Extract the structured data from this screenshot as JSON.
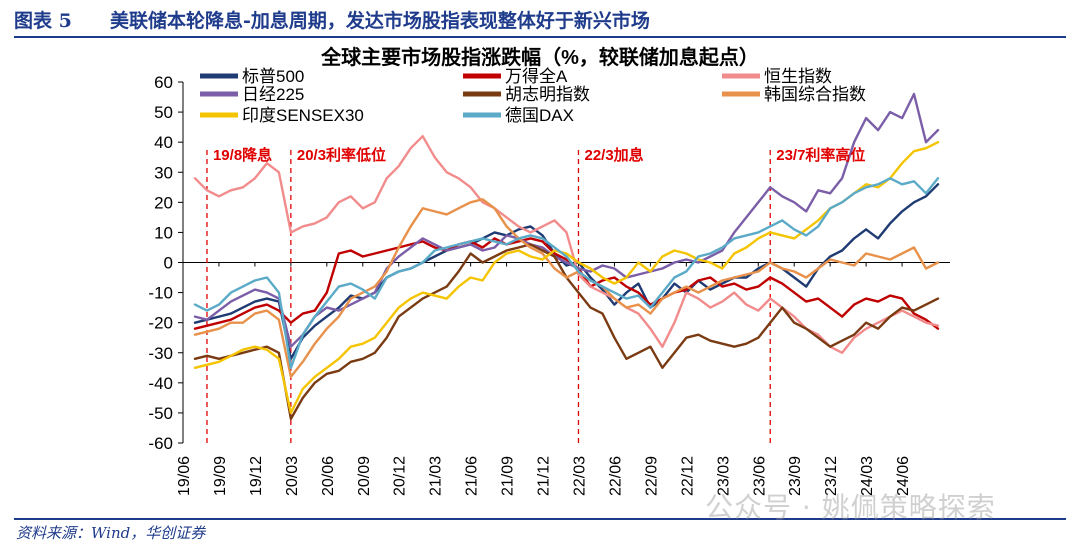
{
  "header": {
    "figure_label": "图表 5",
    "figure_title": "美联储本轮降息-加息周期，发达市场股指表现整体好于新兴市场"
  },
  "footer": {
    "source": "资料来源：Wind，华创证券",
    "watermark": "公众号 · 姚佩策略探索"
  },
  "chart_data": {
    "type": "line",
    "title": "全球主要市场股指涨跌幅（%，较联储加息起点）",
    "xlabel": "",
    "ylabel": "",
    "ylim": [
      -60,
      60
    ],
    "yticks": [
      -60,
      -50,
      -40,
      -30,
      -20,
      -10,
      0,
      10,
      20,
      30,
      40,
      50,
      60
    ],
    "x_tick_labels": [
      "19/06",
      "19/09",
      "19/12",
      "20/03",
      "20/06",
      "20/09",
      "20/12",
      "21/03",
      "21/06",
      "21/09",
      "21/12",
      "22/03",
      "22/06",
      "22/09",
      "22/12",
      "23/03",
      "23/06",
      "23/09",
      "23/12",
      "24/03",
      "24/06"
    ],
    "grid": false,
    "legend": "top",
    "annotations": [
      {
        "label": "19/8降息",
        "x": "19/08"
      },
      {
        "label": "20/3利率低位",
        "x": "20/03"
      },
      {
        "label": "22/3加息",
        "x": "22/03"
      },
      {
        "label": "23/7利率高位",
        "x": "23/07"
      }
    ],
    "x": [
      "19/07",
      "19/08",
      "19/09",
      "19/10",
      "19/11",
      "19/12",
      "20/01",
      "20/02",
      "20/03",
      "20/04",
      "20/05",
      "20/06",
      "20/07",
      "20/08",
      "20/09",
      "20/10",
      "20/11",
      "20/12",
      "21/01",
      "21/02",
      "21/03",
      "21/04",
      "21/05",
      "21/06",
      "21/07",
      "21/08",
      "21/09",
      "21/10",
      "21/11",
      "21/12",
      "22/01",
      "22/02",
      "22/03",
      "22/04",
      "22/05",
      "22/06",
      "22/07",
      "22/08",
      "22/09",
      "22/10",
      "22/11",
      "22/12",
      "23/01",
      "23/02",
      "23/03",
      "23/04",
      "23/05",
      "23/06",
      "23/07",
      "23/08",
      "23/09",
      "23/10",
      "23/11",
      "23/12",
      "24/01",
      "24/02",
      "24/03",
      "24/04",
      "24/05",
      "24/06",
      "24/07",
      "24/08",
      "24/09"
    ],
    "series": [
      {
        "name": "标普500",
        "color": "#1f3b73",
        "values": [
          -20,
          -19,
          -18,
          -17,
          -15,
          -13,
          -12,
          -13,
          -32,
          -25,
          -21,
          -18,
          -15,
          -11,
          -12,
          -10,
          -5,
          -3,
          -2,
          0,
          2,
          4,
          5,
          6,
          8,
          10,
          9,
          11,
          12,
          9,
          3,
          -1,
          0,
          -5,
          -9,
          -14,
          -10,
          -7,
          -15,
          -12,
          -7,
          -10,
          -6,
          -9,
          -7,
          -5,
          -5,
          -2,
          0,
          -2,
          -5,
          -8,
          -2,
          2,
          4,
          8,
          11,
          8,
          13,
          17,
          20,
          22,
          26
        ]
      },
      {
        "name": "万得全A",
        "color": "#c00000",
        "values": [
          -22,
          -21,
          -20,
          -19,
          -17,
          -15,
          -14,
          -16,
          -20,
          -17,
          -16,
          -10,
          3,
          4,
          2,
          3,
          4,
          5,
          6,
          7,
          5,
          4,
          6,
          7,
          5,
          8,
          6,
          7,
          8,
          7,
          3,
          1,
          -2,
          -8,
          -6,
          -5,
          -8,
          -10,
          -14,
          -12,
          -10,
          -9,
          -6,
          -5,
          -8,
          -7,
          -9,
          -8,
          -5,
          -7,
          -10,
          -13,
          -12,
          -15,
          -18,
          -14,
          -12,
          -13,
          -11,
          -12,
          -17,
          -19,
          -22
        ]
      },
      {
        "name": "恒生指数",
        "color": "#f28b8b",
        "values": [
          28,
          24,
          22,
          24,
          25,
          28,
          33,
          30,
          10,
          12,
          13,
          15,
          20,
          22,
          18,
          20,
          28,
          32,
          38,
          42,
          35,
          30,
          28,
          25,
          20,
          18,
          15,
          12,
          10,
          12,
          14,
          10,
          -4,
          -8,
          -10,
          -12,
          -15,
          -17,
          -22,
          -28,
          -20,
          -10,
          -12,
          -15,
          -13,
          -10,
          -14,
          -16,
          -12,
          -15,
          -18,
          -22,
          -24,
          -28,
          -30,
          -25,
          -22,
          -20,
          -18,
          -16,
          -18,
          -20,
          -21
        ]
      },
      {
        "name": "日经225",
        "color": "#7b5ea7",
        "values": [
          -18,
          -19,
          -16,
          -13,
          -11,
          -9,
          -10,
          -12,
          -28,
          -24,
          -18,
          -15,
          -16,
          -14,
          -12,
          -10,
          -2,
          2,
          5,
          8,
          6,
          4,
          5,
          6,
          4,
          5,
          9,
          8,
          6,
          5,
          2,
          0,
          -2,
          -3,
          -1,
          -2,
          -5,
          -4,
          -3,
          -2,
          0,
          1,
          0,
          2,
          4,
          10,
          15,
          20,
          25,
          22,
          20,
          17,
          24,
          23,
          28,
          40,
          48,
          44,
          50,
          48,
          56,
          40,
          44
        ]
      },
      {
        "name": "胡志明指数",
        "color": "#7a3b12",
        "values": [
          -32,
          -31,
          -32,
          -31,
          -30,
          -29,
          -28,
          -30,
          -52,
          -45,
          -40,
          -37,
          -36,
          -33,
          -32,
          -30,
          -25,
          -18,
          -15,
          -12,
          -10,
          -8,
          -3,
          3,
          0,
          2,
          4,
          5,
          6,
          4,
          2,
          -5,
          -10,
          -15,
          -17,
          -25,
          -32,
          -30,
          -28,
          -35,
          -30,
          -25,
          -24,
          -26,
          -27,
          -28,
          -27,
          -25,
          -20,
          -15,
          -20,
          -22,
          -25,
          -28,
          -26,
          -24,
          -20,
          -22,
          -18,
          -15,
          -16,
          -14,
          -12
        ]
      },
      {
        "name": "韩国综合指数",
        "color": "#e8914a",
        "values": [
          -24,
          -23,
          -22,
          -20,
          -20,
          -17,
          -16,
          -19,
          -38,
          -33,
          -27,
          -22,
          -18,
          -12,
          -10,
          -8,
          -3,
          5,
          12,
          18,
          17,
          16,
          18,
          20,
          21,
          18,
          12,
          8,
          5,
          3,
          -2,
          -5,
          -3,
          -6,
          -8,
          -12,
          -15,
          -14,
          -17,
          -12,
          -10,
          -8,
          -10,
          -8,
          -6,
          -5,
          -4,
          -3,
          0,
          -2,
          -3,
          -5,
          -2,
          1,
          0,
          -1,
          3,
          2,
          1,
          3,
          5,
          -2,
          0
        ]
      },
      {
        "name": "印度SENSEX30",
        "color": "#f5c400",
        "values": [
          -35,
          -34,
          -33,
          -31,
          -29,
          -28,
          -29,
          -32,
          -50,
          -42,
          -38,
          -35,
          -32,
          -28,
          -27,
          -25,
          -20,
          -15,
          -12,
          -10,
          -11,
          -12,
          -8,
          -5,
          -6,
          0,
          3,
          4,
          2,
          1,
          4,
          3,
          0,
          -2,
          -5,
          -7,
          -5,
          0,
          -3,
          2,
          4,
          3,
          1,
          0,
          -2,
          3,
          5,
          8,
          10,
          9,
          8,
          11,
          14,
          18,
          20,
          23,
          26,
          25,
          28,
          33,
          37,
          38,
          40
        ]
      },
      {
        "name": "德国DAX",
        "color": "#5aaac8",
        "values": [
          -14,
          -16,
          -14,
          -10,
          -8,
          -6,
          -5,
          -10,
          -35,
          -24,
          -18,
          -13,
          -8,
          -7,
          -9,
          -12,
          -5,
          -3,
          -2,
          0,
          4,
          5,
          6,
          7,
          8,
          7,
          6,
          8,
          9,
          8,
          5,
          2,
          -3,
          -6,
          -8,
          -10,
          -12,
          -11,
          -15,
          -10,
          -5,
          -3,
          2,
          3,
          5,
          8,
          9,
          10,
          12,
          14,
          11,
          9,
          12,
          18,
          20,
          23,
          25,
          26,
          28,
          26,
          27,
          23,
          28
        ]
      }
    ]
  }
}
